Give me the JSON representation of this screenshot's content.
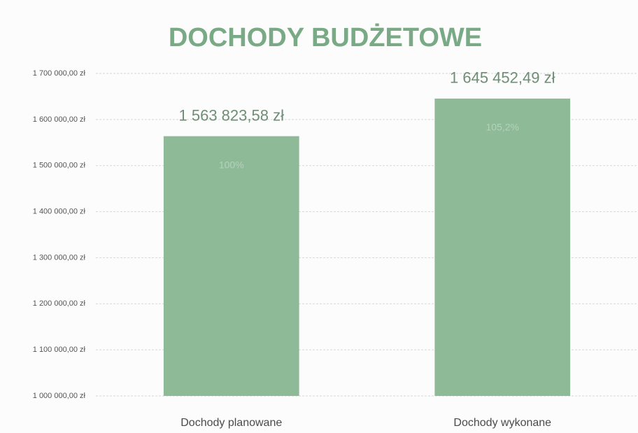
{
  "chart_data": {
    "type": "bar",
    "title": "DOCHODY BUDŻETOWE",
    "categories": [
      "Dochody planowane",
      "Dochody wykonane"
    ],
    "values": [
      1563823.58,
      1645452.49
    ],
    "value_labels": [
      "1 563 823,58 zł",
      "1 645 452,49 zł"
    ],
    "percent_labels": [
      "100%",
      "105,2%"
    ],
    "color": "#8fba98",
    "ylim": [
      1000000,
      1700000
    ],
    "yticks": [
      {
        "value": 1000000,
        "label": "1 000 000,00 zł"
      },
      {
        "value": 1100000,
        "label": "1 100 000,00 zł"
      },
      {
        "value": 1200000,
        "label": "1 200 000,00 zł"
      },
      {
        "value": 1300000,
        "label": "1 300 000,00 zł"
      },
      {
        "value": 1400000,
        "label": "1 400 000,00 zł"
      },
      {
        "value": 1500000,
        "label": "1 500 000,00 zł"
      },
      {
        "value": 1600000,
        "label": "1 600 000,00 zł"
      },
      {
        "value": 1700000,
        "label": "1 700 000,00 zł"
      }
    ],
    "grid": true
  }
}
